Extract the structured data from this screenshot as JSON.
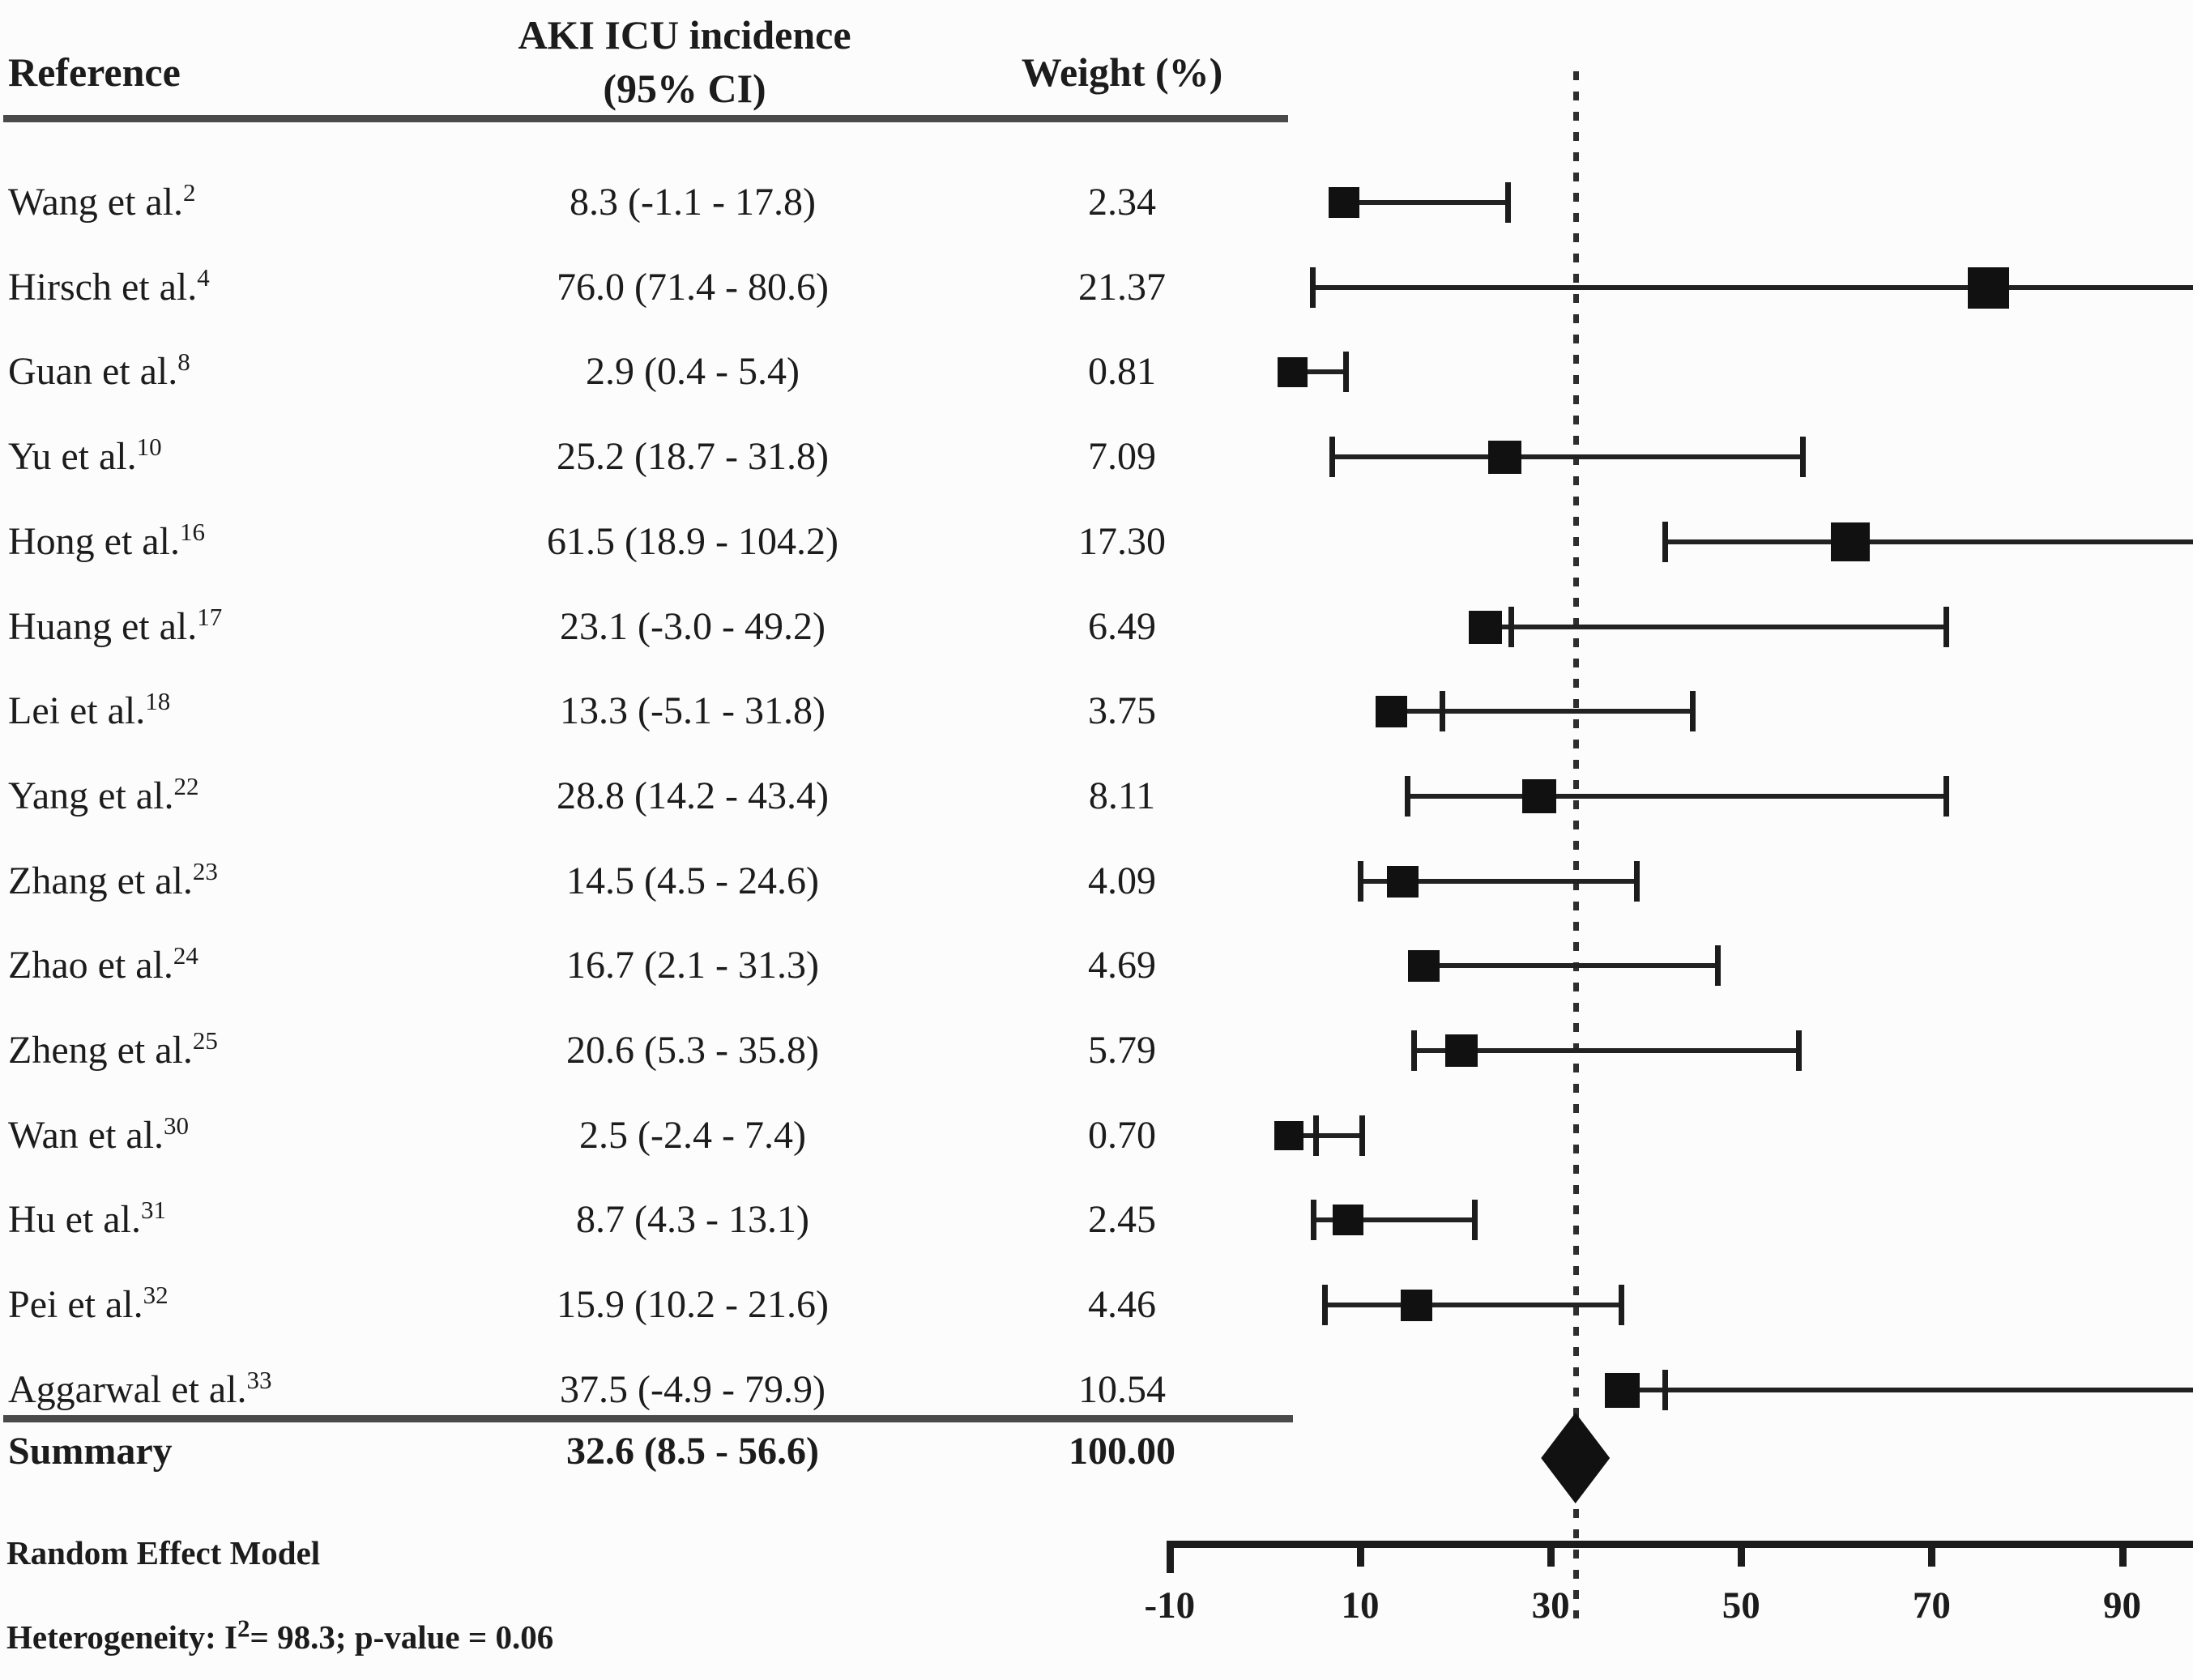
{
  "header": {
    "reference": "Reference",
    "effect_line1": "AKI ICU incidence",
    "effect_line2": "(95% CI)",
    "weight": "Weight (%)"
  },
  "footer": {
    "model": "Random Effect Model",
    "het_prefix": "Heterogeneity: I",
    "het_sup": "2",
    "het_suffix": "= 98.3; p-value = 0.06"
  },
  "colors": {
    "ink": "#1c1c1c",
    "rule": "#4a4a4a",
    "background": "#fcfcfc"
  },
  "chart_data": {
    "type": "forest",
    "title": "AKI ICU incidence (95% CI)",
    "legend_position": "none",
    "grid": false,
    "x_axis": {
      "ticks": [
        -10,
        10,
        30,
        50,
        70,
        90
      ],
      "tick_labels": [
        "-10",
        "10",
        "30",
        "50",
        "70",
        "90"
      ],
      "range_shown": [
        -12,
        97
      ],
      "reference_line_value": 32.6,
      "reference_line_style": "dotted"
    },
    "studies": [
      {
        "label": "Wang et al.",
        "ref_sup": "2",
        "estimate": 8.3,
        "ci_low": -1.1,
        "ci_high": 17.8,
        "ci_text": "8.3 (-1.1 - 17.8)",
        "weight": 2.34,
        "weight_text": "2.34",
        "plot": {
          "from": 8.3,
          "to": 25.5,
          "caps": [
            25.5
          ],
          "clipped_right": false
        }
      },
      {
        "label": "Hirsch et al.",
        "ref_sup": "4",
        "estimate": 76.0,
        "ci_low": 71.4,
        "ci_high": 80.6,
        "ci_text": "76.0 (71.4 - 80.6)",
        "weight": 21.37,
        "weight_text": "21.37",
        "plot": {
          "from": 5.0,
          "to": null,
          "caps": [
            5.0
          ],
          "clipped_right": true
        }
      },
      {
        "label": "Guan et al.",
        "ref_sup": "8",
        "estimate": 2.9,
        "ci_low": 0.4,
        "ci_high": 5.4,
        "ci_text": "2.9 (0.4 - 5.4)",
        "weight": 0.81,
        "weight_text": "0.81",
        "plot": {
          "from": 2.9,
          "to": 8.5,
          "caps": [
            8.5
          ],
          "clipped_right": false
        }
      },
      {
        "label": "Yu et al.",
        "ref_sup": "10",
        "estimate": 25.2,
        "ci_low": 18.7,
        "ci_high": 31.8,
        "ci_text": "25.2 (18.7 - 31.8)",
        "weight": 7.09,
        "weight_text": "7.09",
        "plot": {
          "from": 7.0,
          "to": 56.4,
          "caps": [
            7.0,
            56.4
          ],
          "clipped_right": false
        }
      },
      {
        "label": "Hong et al.",
        "ref_sup": "16",
        "estimate": 61.5,
        "ci_low": 18.9,
        "ci_high": 104.2,
        "ci_text": "61.5 (18.9 - 104.2)",
        "weight": 17.3,
        "weight_text": "17.30",
        "plot": {
          "from": 42.0,
          "to": null,
          "caps": [
            42.0
          ],
          "clipped_right": true
        }
      },
      {
        "label": "Huang et al.",
        "ref_sup": "17",
        "estimate": 23.1,
        "ci_low": -3.0,
        "ci_high": 49.2,
        "ci_text": "23.1 (-3.0 - 49.2)",
        "weight": 6.49,
        "weight_text": "6.49",
        "plot": {
          "from": 23.1,
          "to": 71.5,
          "caps": [
            25.8,
            71.5
          ],
          "clipped_right": false
        }
      },
      {
        "label": "Lei et al.",
        "ref_sup": "18",
        "estimate": 13.3,
        "ci_low": -5.1,
        "ci_high": 31.8,
        "ci_text": "13.3 (-5.1 - 31.8)",
        "weight": 3.75,
        "weight_text": "3.75",
        "plot": {
          "from": 13.3,
          "to": 44.9,
          "caps": [
            18.6,
            44.9
          ],
          "clipped_right": false
        }
      },
      {
        "label": "Yang et al.",
        "ref_sup": "22",
        "estimate": 28.8,
        "ci_low": 14.2,
        "ci_high": 43.4,
        "ci_text": "28.8 (14.2 - 43.4)",
        "weight": 8.11,
        "weight_text": "8.11",
        "plot": {
          "from": 14.9,
          "to": 71.5,
          "caps": [
            14.9,
            71.5
          ],
          "clipped_right": false
        }
      },
      {
        "label": "Zhang et al.",
        "ref_sup": "23",
        "estimate": 14.5,
        "ci_low": 4.5,
        "ci_high": 24.6,
        "ci_text": "14.5 (4.5 - 24.6)",
        "weight": 4.09,
        "weight_text": "4.09",
        "plot": {
          "from": 10.0,
          "to": 39.0,
          "caps": [
            10.0,
            39.0
          ],
          "clipped_right": false
        }
      },
      {
        "label": "Zhao et al.",
        "ref_sup": "24",
        "estimate": 16.7,
        "ci_low": 2.1,
        "ci_high": 31.3,
        "ci_text": "16.7 (2.1 - 31.3)",
        "weight": 4.69,
        "weight_text": "4.69",
        "plot": {
          "from": 16.7,
          "to": 47.5,
          "caps": [
            47.5
          ],
          "clipped_right": false
        }
      },
      {
        "label": "Zheng et al.",
        "ref_sup": "25",
        "estimate": 20.6,
        "ci_low": 5.3,
        "ci_high": 35.8,
        "ci_text": "20.6 (5.3 - 35.8)",
        "weight": 5.79,
        "weight_text": "5.79",
        "plot": {
          "from": 15.6,
          "to": 56.0,
          "caps": [
            15.6,
            56.0
          ],
          "clipped_right": false
        }
      },
      {
        "label": "Wan et al.",
        "ref_sup": "30",
        "estimate": 2.5,
        "ci_low": -2.4,
        "ci_high": 7.4,
        "ci_text": "2.5 (-2.4 - 7.4)",
        "weight": 0.7,
        "weight_text": "0.70",
        "plot": {
          "from": 2.5,
          "to": 10.2,
          "caps": [
            5.3,
            10.2
          ],
          "clipped_right": false
        }
      },
      {
        "label": "Hu et al.",
        "ref_sup": "31",
        "estimate": 8.7,
        "ci_low": 4.3,
        "ci_high": 13.1,
        "ci_text": "8.7 (4.3 - 13.1)",
        "weight": 2.45,
        "weight_text": "2.45",
        "plot": {
          "from": 5.1,
          "to": 22.0,
          "caps": [
            5.1,
            22.0
          ],
          "clipped_right": false
        }
      },
      {
        "label": "Pei et al.",
        "ref_sup": "32",
        "estimate": 15.9,
        "ci_low": 10.2,
        "ci_high": 21.6,
        "ci_text": "15.9 (10.2 - 21.6)",
        "weight": 4.46,
        "weight_text": "4.46",
        "plot": {
          "from": 6.3,
          "to": 37.4,
          "caps": [
            6.3,
            37.4
          ],
          "clipped_right": false
        }
      },
      {
        "label": "Aggarwal et al.",
        "ref_sup": "33",
        "estimate": 37.5,
        "ci_low": -4.9,
        "ci_high": 79.9,
        "ci_text": "37.5 (-4.9 - 79.9)",
        "weight": 10.54,
        "weight_text": "10.54",
        "plot": {
          "from": 37.5,
          "to": null,
          "caps": [
            42.0
          ],
          "clipped_right": true
        }
      }
    ],
    "summary": {
      "label": "Summary",
      "estimate": 32.6,
      "ci_low": 8.5,
      "ci_high": 56.6,
      "ci_text": "32.6 (8.5 - 56.6)",
      "weight": 100.0,
      "weight_text": "100.00",
      "diamond_half_width": 3.6
    },
    "model": "Random Effect Model",
    "heterogeneity": {
      "I2": 98.3,
      "p_value": 0.06
    }
  }
}
